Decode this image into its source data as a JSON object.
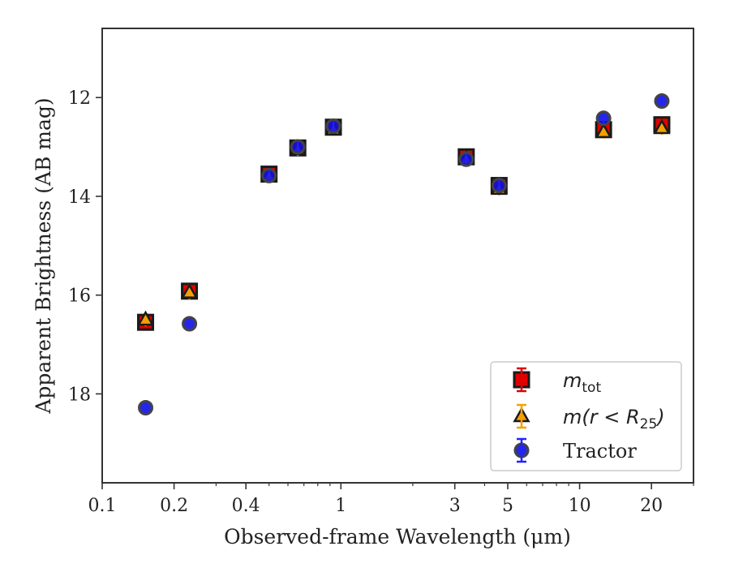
{
  "chart_data": {
    "type": "scatter",
    "x_scale": "log",
    "y_inverted": true,
    "xlabel": "Observed-frame Wavelength (μm)",
    "ylabel": "Apparent Brightness (AB mag)",
    "xlim": [
      0.1,
      30
    ],
    "ylim": [
      10.6,
      19.8
    ],
    "x_ticks": [
      0.1,
      0.2,
      0.4,
      1,
      3,
      5,
      10,
      20
    ],
    "x_tick_labels": [
      "0.1",
      "0.2",
      "0.4",
      "1",
      "3",
      "5",
      "10",
      "20"
    ],
    "y_ticks": [
      12,
      14,
      16,
      18
    ],
    "y_tick_labels": [
      "12",
      "14",
      "16",
      "18"
    ],
    "grid": false,
    "legend": {
      "position": "lower-right",
      "entries": [
        {
          "series": 0,
          "label_main": "m",
          "label_sub": "tot",
          "label_rest": ""
        },
        {
          "series": 1,
          "label_main": "m(r < R",
          "label_sub": "25",
          "label_rest": ")"
        },
        {
          "series": 2,
          "label_main": "Tractor",
          "label_sub": "",
          "label_rest": ""
        }
      ]
    },
    "series": [
      {
        "marker": "square",
        "color": "#e00000",
        "edge_color": "#1a1a1a",
        "points": [
          {
            "x": 0.152,
            "y": 16.55
          },
          {
            "x": 0.232,
            "y": 15.92
          },
          {
            "x": 0.5,
            "y": 13.55
          },
          {
            "x": 0.66,
            "y": 13.02
          },
          {
            "x": 0.93,
            "y": 12.6
          },
          {
            "x": 3.35,
            "y": 13.2
          },
          {
            "x": 4.6,
            "y": 13.78
          },
          {
            "x": 12.6,
            "y": 12.65
          },
          {
            "x": 22.1,
            "y": 12.55
          }
        ]
      },
      {
        "marker": "triangle",
        "color": "#f5a000",
        "edge_color": "#1a1a1a",
        "points": [
          {
            "x": 0.152,
            "y": 16.5
          },
          {
            "x": 0.232,
            "y": 15.95
          },
          {
            "x": 0.5,
            "y": 13.6
          },
          {
            "x": 0.66,
            "y": 13.05
          },
          {
            "x": 0.93,
            "y": 12.65
          },
          {
            "x": 3.35,
            "y": 13.25
          },
          {
            "x": 4.6,
            "y": 13.85
          },
          {
            "x": 12.6,
            "y": 12.7
          },
          {
            "x": 22.1,
            "y": 12.62
          }
        ]
      },
      {
        "marker": "circle",
        "color": "#1010e0",
        "edge_color": "#444444",
        "points": [
          {
            "x": 0.152,
            "y": 18.28
          },
          {
            "x": 0.232,
            "y": 16.58
          },
          {
            "x": 0.5,
            "y": 13.58
          },
          {
            "x": 0.66,
            "y": 13.0
          },
          {
            "x": 0.93,
            "y": 12.58
          },
          {
            "x": 3.35,
            "y": 13.25
          },
          {
            "x": 4.6,
            "y": 13.78
          },
          {
            "x": 12.6,
            "y": 12.42
          },
          {
            "x": 22.1,
            "y": 12.07
          }
        ]
      }
    ]
  }
}
